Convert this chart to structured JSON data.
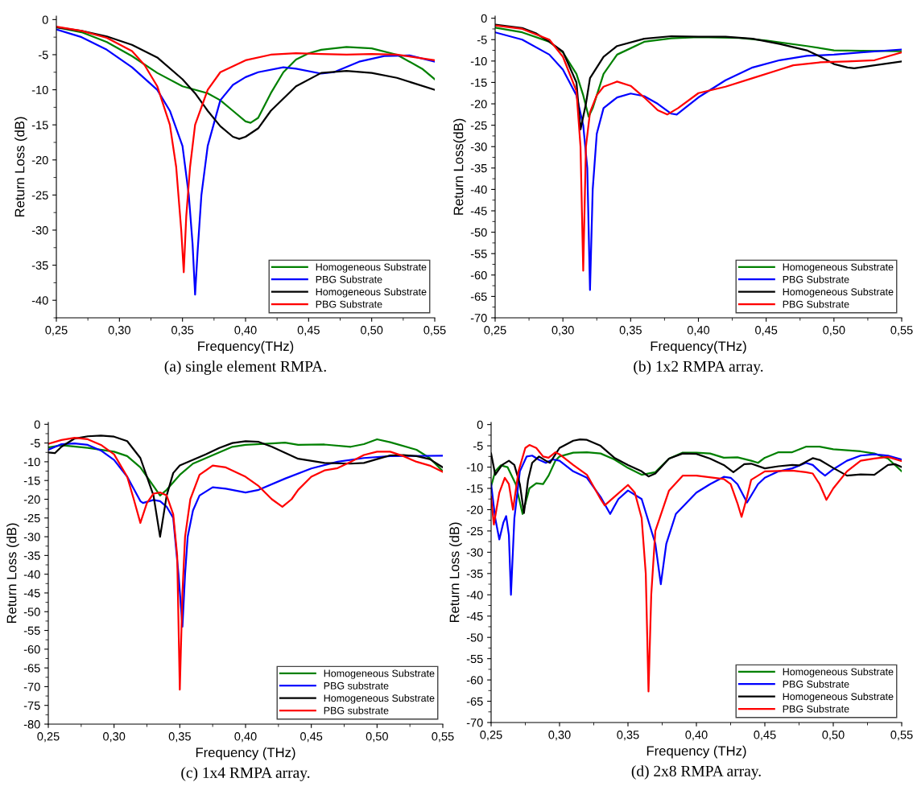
{
  "chart_data": [
    {
      "type": "line",
      "xlabel": "Frequency(THz)",
      "ylabel": "Return Loss (dB)",
      "legend": "bottom right",
      "grid": false,
      "annotations": [
        "(a) single element RMPA."
      ],
      "xlim": [
        0.25,
        0.55
      ],
      "xticks": [
        {
          "value": 0.25,
          "label": "0,25"
        },
        {
          "value": 0.3,
          "label": "0,30"
        },
        {
          "value": 0.35,
          "label": "0,35"
        },
        {
          "value": 0.4,
          "label": "0,40"
        },
        {
          "value": 0.45,
          "label": "0,45"
        },
        {
          "value": 0.5,
          "label": "0,50"
        },
        {
          "value": 0.55,
          "label": "0,55"
        }
      ],
      "ylim": [
        -42.5,
        0.5
      ],
      "yticks": [
        -40,
        -35,
        -30,
        -25,
        -20,
        -15,
        -10,
        -5,
        0
      ],
      "series": [
        {
          "name": "Homogeneous Substrate",
          "color": "#008000",
          "x": [
            0.25,
            0.27,
            0.29,
            0.31,
            0.33,
            0.35,
            0.37,
            0.38,
            0.39,
            0.4,
            0.404,
            0.41,
            0.42,
            0.43,
            0.44,
            0.45,
            0.46,
            0.48,
            0.5,
            0.52,
            0.54,
            0.55
          ],
          "values": [
            -1.1,
            -1.8,
            -3.2,
            -5.2,
            -7.6,
            -9.5,
            -10.5,
            -11.5,
            -13,
            -14.5,
            -14.7,
            -14,
            -10.5,
            -7.5,
            -5.7,
            -4.8,
            -4.3,
            -3.9,
            -4.1,
            -5,
            -7,
            -8.5
          ]
        },
        {
          "name": "PBG Substrate",
          "color": "#0000ff",
          "x": [
            0.25,
            0.27,
            0.29,
            0.31,
            0.33,
            0.34,
            0.35,
            0.355,
            0.358,
            0.36,
            0.362,
            0.365,
            0.37,
            0.38,
            0.39,
            0.4,
            0.41,
            0.43,
            0.44,
            0.46,
            0.47,
            0.49,
            0.51,
            0.53,
            0.55
          ],
          "values": [
            -1.4,
            -2.5,
            -4.3,
            -6.8,
            -10,
            -13,
            -18,
            -25,
            -32,
            -39.2,
            -33,
            -25,
            -18,
            -11.5,
            -9.3,
            -8.2,
            -7.5,
            -6.8,
            -7,
            -7.7,
            -7.5,
            -6,
            -5.2,
            -5.1,
            -6
          ]
        },
        {
          "name": "Homogeneous Substrate",
          "color": "#000000",
          "x": [
            0.25,
            0.27,
            0.29,
            0.31,
            0.33,
            0.35,
            0.36,
            0.37,
            0.38,
            0.39,
            0.395,
            0.4,
            0.41,
            0.42,
            0.44,
            0.46,
            0.48,
            0.5,
            0.52,
            0.55
          ],
          "values": [
            -1.1,
            -1.6,
            -2.4,
            -3.6,
            -5.4,
            -8.5,
            -10.5,
            -13,
            -15.2,
            -16.7,
            -17,
            -16.7,
            -15.5,
            -13,
            -9.5,
            -7.6,
            -7.3,
            -7.6,
            -8.3,
            -10
          ]
        },
        {
          "name": "PBG Substrate",
          "color": "#ff0000",
          "x": [
            0.25,
            0.27,
            0.29,
            0.31,
            0.32,
            0.33,
            0.34,
            0.345,
            0.349,
            0.351,
            0.353,
            0.356,
            0.36,
            0.37,
            0.38,
            0.4,
            0.42,
            0.44,
            0.46,
            0.48,
            0.5,
            0.52,
            0.55
          ],
          "values": [
            -1,
            -1.6,
            -2.6,
            -4.5,
            -6.5,
            -9.5,
            -15,
            -21,
            -30,
            -36,
            -28,
            -21,
            -15,
            -10,
            -7.5,
            -5.8,
            -5,
            -4.8,
            -4.9,
            -5,
            -4.9,
            -5,
            -5.8
          ]
        }
      ]
    },
    {
      "type": "line",
      "xlabel": "Frequency(THz)",
      "ylabel": "Return Loss(dB)",
      "legend": "bottom right",
      "grid": false,
      "annotations": [
        "(b) 1x2 RMPA array."
      ],
      "xlim": [
        0.25,
        0.55
      ],
      "xticks": [
        {
          "value": 0.25,
          "label": "0,25"
        },
        {
          "value": 0.3,
          "label": "0,30"
        },
        {
          "value": 0.35,
          "label": "0,35"
        },
        {
          "value": 0.4,
          "label": "0,40"
        },
        {
          "value": 0.45,
          "label": "0,45"
        },
        {
          "value": 0.5,
          "label": "0,50"
        },
        {
          "value": 0.55,
          "label": "0,55"
        }
      ],
      "ylim": [
        -70,
        0.5
      ],
      "yticks": [
        -70,
        -65,
        -60,
        -55,
        -50,
        -45,
        -40,
        -35,
        -30,
        -25,
        -20,
        -15,
        -10,
        -5,
        0
      ],
      "series": [
        {
          "name": "Homogeneous Substrate",
          "color": "#008000",
          "x": [
            0.25,
            0.27,
            0.29,
            0.3,
            0.31,
            0.315,
            0.319,
            0.322,
            0.33,
            0.34,
            0.36,
            0.38,
            0.4,
            0.43,
            0.45,
            0.48,
            0.5,
            0.52,
            0.55
          ],
          "values": [
            -2.2,
            -3.3,
            -5.5,
            -8,
            -13,
            -18,
            -23,
            -21,
            -13,
            -8.5,
            -5.5,
            -4.7,
            -4.4,
            -4.6,
            -5.2,
            -6.5,
            -7.5,
            -7.6,
            -7.7
          ]
        },
        {
          "name": "PBG Substrate",
          "color": "#0000ff",
          "x": [
            0.25,
            0.27,
            0.29,
            0.3,
            0.31,
            0.315,
            0.318,
            0.32,
            0.322,
            0.325,
            0.33,
            0.34,
            0.35,
            0.36,
            0.37,
            0.38,
            0.384,
            0.39,
            0.4,
            0.42,
            0.44,
            0.46,
            0.48,
            0.5,
            0.52,
            0.55
          ],
          "values": [
            -3.3,
            -5,
            -8.5,
            -12,
            -18,
            -25,
            -35,
            -63.5,
            -40,
            -27,
            -21,
            -18.5,
            -17.6,
            -18.2,
            -20,
            -22.3,
            -22.5,
            -21,
            -18.5,
            -14.5,
            -11.5,
            -9.8,
            -8.8,
            -8.5,
            -8,
            -7.3
          ]
        },
        {
          "name": "Homogeneous Substrate",
          "color": "#000000",
          "x": [
            0.25,
            0.27,
            0.28,
            0.29,
            0.3,
            0.31,
            0.313,
            0.317,
            0.32,
            0.33,
            0.34,
            0.36,
            0.38,
            0.4,
            0.42,
            0.44,
            0.46,
            0.48,
            0.49,
            0.5,
            0.51,
            0.515,
            0.53,
            0.55
          ],
          "values": [
            -1.5,
            -2.3,
            -3.5,
            -5.5,
            -7.8,
            -15,
            -26,
            -20,
            -14,
            -9,
            -6.5,
            -4.8,
            -4.2,
            -4.3,
            -4.3,
            -4.8,
            -6,
            -7.5,
            -9,
            -10.7,
            -11.5,
            -11.7,
            -11,
            -10.1
          ]
        },
        {
          "name": "PBG Substrate",
          "color": "#ff0000",
          "x": [
            0.25,
            0.27,
            0.29,
            0.3,
            0.31,
            0.313,
            0.315,
            0.317,
            0.32,
            0.325,
            0.33,
            0.34,
            0.35,
            0.36,
            0.37,
            0.377,
            0.385,
            0.4,
            0.42,
            0.44,
            0.46,
            0.47,
            0.49,
            0.51,
            0.53,
            0.55
          ],
          "values": [
            -1.7,
            -2.5,
            -5,
            -9,
            -17,
            -30,
            -59,
            -30,
            -22,
            -18,
            -16,
            -14.8,
            -15.8,
            -18.5,
            -21.5,
            -22.5,
            -21,
            -17.5,
            -16,
            -14,
            -12,
            -11,
            -10.3,
            -10.1,
            -9.8,
            -8
          ]
        }
      ]
    },
    {
      "type": "line",
      "xlabel": "Frequency (THz)",
      "ylabel": "Return Loss (dB)",
      "legend": "bottom right",
      "grid": false,
      "annotations": [
        "(c) 1x4 RMPA array."
      ],
      "xlim": [
        0.25,
        0.55
      ],
      "xticks": [
        {
          "value": 0.25,
          "label": "0,25"
        },
        {
          "value": 0.3,
          "label": "0,30"
        },
        {
          "value": 0.35,
          "label": "0,35"
        },
        {
          "value": 0.4,
          "label": "0,40"
        },
        {
          "value": 0.45,
          "label": "0,45"
        },
        {
          "value": 0.5,
          "label": "0,50"
        },
        {
          "value": 0.55,
          "label": "0,55"
        }
      ],
      "ylim": [
        -80,
        0.5
      ],
      "yticks": [
        -80,
        -75,
        -70,
        -65,
        -60,
        -55,
        -50,
        -45,
        -40,
        -35,
        -30,
        -25,
        -20,
        -15,
        -10,
        -5,
        0
      ],
      "series": [
        {
          "name": "Homogeneous Substrate",
          "color": "#008000",
          "x": [
            0.25,
            0.26,
            0.28,
            0.3,
            0.31,
            0.32,
            0.33,
            0.335,
            0.34,
            0.35,
            0.36,
            0.37,
            0.38,
            0.39,
            0.4,
            0.42,
            0.43,
            0.44,
            0.46,
            0.48,
            0.49,
            0.5,
            0.51,
            0.53,
            0.54,
            0.55
          ],
          "values": [
            -6.2,
            -5.6,
            -6.3,
            -7.3,
            -8.5,
            -11.5,
            -16.5,
            -19,
            -17.5,
            -13.5,
            -10.5,
            -9,
            -7.5,
            -6,
            -5.5,
            -5.1,
            -4.9,
            -5.5,
            -5.4,
            -6,
            -5.3,
            -4,
            -4.8,
            -6.8,
            -9,
            -12.5
          ]
        },
        {
          "name": "PBG substrate",
          "color": "#0000ff",
          "x": [
            0.25,
            0.26,
            0.27,
            0.28,
            0.29,
            0.3,
            0.31,
            0.32,
            0.322,
            0.33,
            0.335,
            0.34,
            0.345,
            0.349,
            0.352,
            0.354,
            0.356,
            0.36,
            0.365,
            0.375,
            0.385,
            0.4,
            0.41,
            0.43,
            0.45,
            0.47,
            0.49,
            0.51,
            0.55
          ],
          "values": [
            -6.8,
            -5.3,
            -5.1,
            -5.5,
            -7,
            -9.5,
            -14,
            -20.5,
            -21,
            -20.2,
            -20.5,
            -22,
            -25,
            -40,
            -54,
            -40,
            -30,
            -23,
            -19,
            -16.8,
            -17.2,
            -18.2,
            -17.5,
            -14.5,
            -11.8,
            -10,
            -9,
            -8.5,
            -8.4
          ]
        },
        {
          "name": "Homogeneous Substrate",
          "color": "#000000",
          "x": [
            0.25,
            0.255,
            0.26,
            0.27,
            0.28,
            0.29,
            0.3,
            0.31,
            0.32,
            0.33,
            0.335,
            0.34,
            0.345,
            0.35,
            0.36,
            0.37,
            0.38,
            0.39,
            0.4,
            0.41,
            0.42,
            0.44,
            0.46,
            0.48,
            0.49,
            0.5,
            0.51,
            0.52,
            0.53,
            0.54,
            0.55
          ],
          "values": [
            -7.5,
            -7.7,
            -6,
            -3.8,
            -3.2,
            -3,
            -3.3,
            -4.5,
            -9,
            -19,
            -30,
            -19,
            -13,
            -11,
            -9.5,
            -8,
            -6.3,
            -5,
            -4.5,
            -4.7,
            -6,
            -9.2,
            -10.3,
            -10.5,
            -10.3,
            -9.3,
            -8.3,
            -8.2,
            -8.5,
            -9.3,
            -11.5
          ]
        },
        {
          "name": "PBG substrate",
          "color": "#ff0000",
          "x": [
            0.25,
            0.26,
            0.27,
            0.28,
            0.29,
            0.3,
            0.31,
            0.315,
            0.32,
            0.325,
            0.33,
            0.335,
            0.34,
            0.345,
            0.348,
            0.35,
            0.352,
            0.354,
            0.358,
            0.365,
            0.375,
            0.385,
            0.4,
            0.41,
            0.42,
            0.428,
            0.435,
            0.44,
            0.45,
            0.46,
            0.47,
            0.48,
            0.49,
            0.5,
            0.51,
            0.52,
            0.53,
            0.54,
            0.55
          ],
          "values": [
            -5.2,
            -4.2,
            -3.6,
            -4,
            -5.5,
            -8,
            -14,
            -20,
            -26.3,
            -21,
            -18.5,
            -18.2,
            -19,
            -24,
            -35,
            -70.8,
            -45,
            -30,
            -20,
            -13.5,
            -11,
            -11.5,
            -14,
            -16.5,
            -20,
            -22,
            -20,
            -17.5,
            -14,
            -12.3,
            -11.7,
            -10,
            -8.2,
            -7.3,
            -7.3,
            -8.5,
            -10,
            -11,
            -12.7
          ]
        }
      ]
    },
    {
      "type": "line",
      "xlabel": "Frequency (THz)",
      "ylabel": "Return Loss (dB)",
      "legend": "bottom right",
      "grid": false,
      "annotations": [
        "(d) 2x8 RMPA array."
      ],
      "xlim": [
        0.25,
        0.55
      ],
      "xticks": [
        {
          "value": 0.25,
          "label": "0,25"
        },
        {
          "value": 0.3,
          "label": "0,30"
        },
        {
          "value": 0.35,
          "label": "0,35"
        },
        {
          "value": 0.4,
          "label": "0,40"
        },
        {
          "value": 0.45,
          "label": "0,45"
        },
        {
          "value": 0.5,
          "label": "0,50"
        },
        {
          "value": 0.55,
          "label": "0,55"
        }
      ],
      "ylim": [
        -70,
        0.5
      ],
      "yticks": [
        -70,
        -65,
        -60,
        -55,
        -50,
        -45,
        -40,
        -35,
        -30,
        -25,
        -20,
        -15,
        -10,
        -5,
        0
      ],
      "series": [
        {
          "name": "Homogeneous Substrate",
          "color": "#008000",
          "x": [
            0.25,
            0.253,
            0.257,
            0.262,
            0.268,
            0.273,
            0.278,
            0.283,
            0.288,
            0.292,
            0.297,
            0.3,
            0.31,
            0.32,
            0.33,
            0.34,
            0.35,
            0.36,
            0.37,
            0.38,
            0.39,
            0.4,
            0.41,
            0.42,
            0.43,
            0.44,
            0.445,
            0.45,
            0.46,
            0.47,
            0.48,
            0.49,
            0.5,
            0.52,
            0.53,
            0.54,
            0.55
          ],
          "values": [
            -14.5,
            -11,
            -9.6,
            -10,
            -14,
            -21,
            -15,
            -13.8,
            -14,
            -12,
            -8.5,
            -7.5,
            -6.6,
            -6.5,
            -6.8,
            -8.2,
            -10.2,
            -11.8,
            -11.2,
            -8,
            -6.6,
            -6.6,
            -6.8,
            -7.8,
            -7.7,
            -8.5,
            -9,
            -7.8,
            -6.5,
            -6.5,
            -5.2,
            -5.2,
            -5.8,
            -6.3,
            -6.8,
            -8,
            -11
          ]
        },
        {
          "name": "PBG Substrate",
          "color": "#0000ff",
          "x": [
            0.25,
            0.253,
            0.256,
            0.259,
            0.261,
            0.263,
            0.2645,
            0.267,
            0.271,
            0.276,
            0.28,
            0.285,
            0.29,
            0.295,
            0.3,
            0.31,
            0.32,
            0.33,
            0.337,
            0.343,
            0.35,
            0.36,
            0.37,
            0.374,
            0.378,
            0.385,
            0.4,
            0.41,
            0.42,
            0.425,
            0.43,
            0.437,
            0.445,
            0.45,
            0.46,
            0.47,
            0.48,
            0.485,
            0.49,
            0.494,
            0.5,
            0.51,
            0.52,
            0.53,
            0.54,
            0.55
          ],
          "values": [
            -14,
            -22,
            -27,
            -23,
            -21.5,
            -26,
            -40,
            -22,
            -11,
            -7.5,
            -7.3,
            -8.3,
            -9,
            -8.2,
            -8.5,
            -11,
            -12.5,
            -17,
            -21,
            -17.5,
            -15.5,
            -17.5,
            -28,
            -37.5,
            -28,
            -21,
            -16,
            -14,
            -12.3,
            -12.5,
            -14,
            -18.3,
            -14,
            -12.5,
            -11,
            -10.3,
            -9,
            -9.5,
            -11,
            -12,
            -10.5,
            -8.5,
            -7.3,
            -7,
            -7.3,
            -8.2
          ]
        },
        {
          "name": "Homogeneous Substrate",
          "color": "#000000",
          "x": [
            0.25,
            0.253,
            0.258,
            0.263,
            0.267,
            0.271,
            0.274,
            0.277,
            0.28,
            0.285,
            0.29,
            0.293,
            0.297,
            0.3,
            0.31,
            0.315,
            0.32,
            0.33,
            0.34,
            0.35,
            0.36,
            0.365,
            0.37,
            0.38,
            0.39,
            0.4,
            0.41,
            0.42,
            0.427,
            0.435,
            0.44,
            0.45,
            0.46,
            0.47,
            0.475,
            0.485,
            0.49,
            0.5,
            0.51,
            0.52,
            0.53,
            0.54,
            0.545,
            0.55
          ],
          "values": [
            -6.8,
            -11.8,
            -9.5,
            -8.5,
            -9.5,
            -14,
            -20.8,
            -13,
            -9,
            -7.5,
            -8.5,
            -9,
            -7,
            -5.5,
            -3.8,
            -3.5,
            -3.6,
            -5,
            -7.8,
            -9.5,
            -11,
            -12.2,
            -11.5,
            -8,
            -6.8,
            -6.9,
            -8,
            -9.5,
            -11.2,
            -9.3,
            -9.2,
            -10.3,
            -9.8,
            -9.5,
            -9.6,
            -7.9,
            -8.3,
            -10.2,
            -12,
            -11.7,
            -11.8,
            -9.5,
            -9.3,
            -10
          ]
        },
        {
          "name": "PBG Substrate",
          "color": "#ff0000",
          "x": [
            0.25,
            0.252,
            0.256,
            0.26,
            0.263,
            0.266,
            0.27,
            0.275,
            0.278,
            0.283,
            0.288,
            0.292,
            0.297,
            0.3,
            0.31,
            0.32,
            0.33,
            0.333,
            0.34,
            0.35,
            0.355,
            0.36,
            0.363,
            0.365,
            0.367,
            0.37,
            0.38,
            0.39,
            0.4,
            0.42,
            0.425,
            0.43,
            0.433,
            0.437,
            0.44,
            0.45,
            0.46,
            0.47,
            0.48,
            0.485,
            0.49,
            0.495,
            0.5,
            0.51,
            0.52,
            0.53,
            0.54,
            0.55
          ],
          "values": [
            -17,
            -23.5,
            -16,
            -12.5,
            -14,
            -20,
            -11,
            -5.5,
            -4.8,
            -5.5,
            -7.5,
            -7.8,
            -6.5,
            -7,
            -9.5,
            -11.8,
            -17.5,
            -19,
            -17,
            -14.2,
            -16,
            -22,
            -35,
            -62.7,
            -40,
            -25,
            -15.5,
            -12,
            -12,
            -12.8,
            -14,
            -18.5,
            -21.7,
            -17,
            -13,
            -11,
            -10.9,
            -10.8,
            -11.2,
            -11.5,
            -14,
            -17.7,
            -15,
            -11,
            -8.5,
            -8,
            -7.6,
            -8.6
          ]
        }
      ]
    }
  ]
}
